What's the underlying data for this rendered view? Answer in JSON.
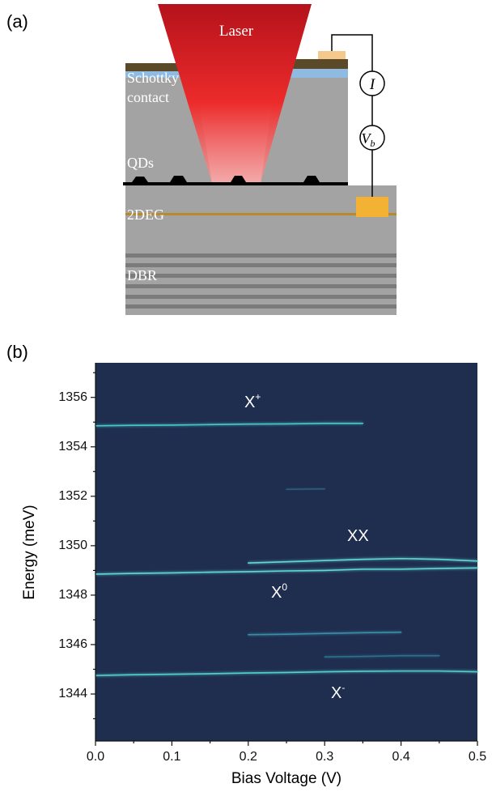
{
  "figure": {
    "panel_a": "(a)",
    "panel_b": "(b)"
  },
  "diagram": {
    "laser": "Laser",
    "schottky_1": "Schottky",
    "schottky_2": "contact",
    "qds": "QDs",
    "twodeg": "2DEG",
    "dbr": "DBR",
    "current": "I",
    "voltage": "V",
    "voltage_sub": "b"
  },
  "chart_data": {
    "type": "line",
    "xlabel": "Bias Voltage (V)",
    "ylabel": "Energy (meV)",
    "plot_background": "#1f2d4f",
    "x": [
      0,
      0.05,
      0.1,
      0.15,
      0.2,
      0.25,
      0.3,
      0.35,
      0.4,
      0.45,
      0.5
    ],
    "series": [
      {
        "color": "#46c9c9",
        "values": [
          1354.85,
          1354.87,
          1354.88,
          1354.9,
          1354.92,
          1354.93,
          1354.95,
          1354.95,
          null,
          null,
          null
        ]
      },
      {
        "color": "#5fd9d2",
        "values": [
          1348.85,
          1348.88,
          1348.9,
          1348.93,
          1348.95,
          1348.98,
          1349.0,
          1349.05,
          1349.05,
          1349.08,
          1349.1
        ]
      },
      {
        "color": "#5fd9d2",
        "values": [
          null,
          null,
          null,
          null,
          1349.3,
          1349.35,
          1349.4,
          1349.45,
          1349.48,
          1349.45,
          1349.38
        ]
      },
      {
        "color": "#52d0cc",
        "values": [
          1344.75,
          1344.78,
          1344.8,
          1344.82,
          1344.85,
          1344.87,
          1344.9,
          1344.92,
          1344.93,
          1344.93,
          1344.9
        ]
      },
      {
        "color": "#3a8fa6",
        "values": [
          null,
          null,
          null,
          null,
          1346.4,
          1346.42,
          1346.45,
          1346.48,
          1346.5,
          null,
          null
        ]
      },
      {
        "color": "#2f6f8a",
        "values": [
          null,
          null,
          null,
          null,
          null,
          null,
          1345.5,
          1345.52,
          1345.55,
          1345.55,
          null
        ]
      },
      {
        "color": "#2c5a7a",
        "values": [
          null,
          null,
          null,
          null,
          null,
          1352.28,
          1352.3,
          null,
          null,
          null,
          null
        ]
      }
    ],
    "annotations": [
      {
        "text": "X",
        "sup": "+"
      },
      {
        "text": "XX"
      },
      {
        "text": "X",
        "sup": "0"
      },
      {
        "text": "X",
        "sup": "-"
      }
    ],
    "xlim": [
      0,
      0.5
    ],
    "ylim": [
      1342.1,
      1357.4
    ],
    "xticks": [
      {
        "value": 0,
        "label": "0.0"
      },
      0.1,
      0.2,
      0.3,
      0.4,
      0.5
    ],
    "yticks": [
      1344,
      1346,
      1348,
      1350,
      1352,
      1354,
      1356
    ],
    "xminorticks": [
      0.05,
      0.15,
      0.25,
      0.35,
      0.45
    ],
    "yminorticks": [
      1343,
      1345,
      1347,
      1349,
      1351,
      1353,
      1355,
      1357
    ]
  }
}
